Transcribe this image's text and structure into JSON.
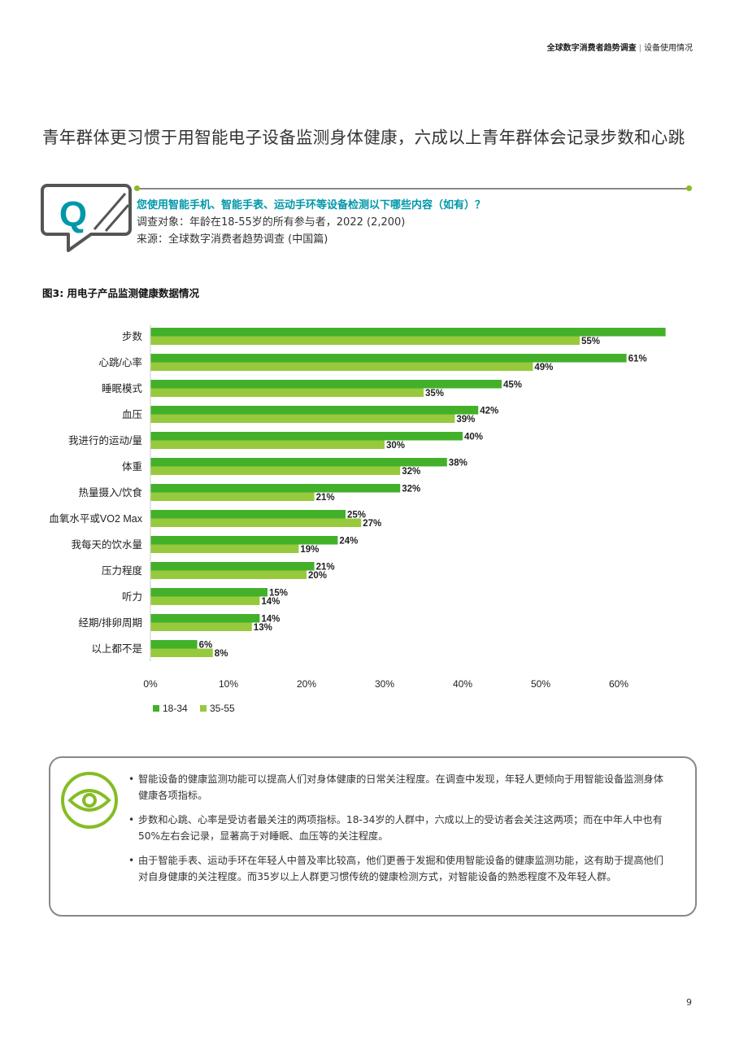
{
  "header": {
    "report": "全球数字消费者趋势调查",
    "section": "设备使用情况"
  },
  "page_title": "青年群体更习惯于用智能电子设备监测身体健康，六成以上青年群体会记录步数和心跳",
  "question": {
    "icon_letter": "Q",
    "text": "您使用智能手机、智能手表、运动手环等设备检测以下哪些内容（如有）？",
    "subjects": "调查对象：年龄在18-55岁的所有参与者，2022 (2,200)",
    "source": "来源：全球数字消费者趋势调查 (中国篇)"
  },
  "figure_title": "图3: 用电子产品监测健康数据情况",
  "chart_data": {
    "type": "bar",
    "orientation": "horizontal",
    "categories": [
      "步数",
      "心跳/心率",
      "睡眠模式",
      "血压",
      "我进行的运动/量",
      "体重",
      "热量摄入/饮食",
      "血氧水平或VO2 Max",
      "我每天的饮水量",
      "压力程度",
      "听力",
      "经期/排卵周期",
      "以上都不是"
    ],
    "series": [
      {
        "name": "18-34",
        "color": "#43b02a",
        "values": [
          66,
          61,
          45,
          42,
          40,
          38,
          32,
          25,
          24,
          21,
          15,
          14,
          6
        ]
      },
      {
        "name": "35-55",
        "color": "#97c93d",
        "values": [
          55,
          49,
          35,
          39,
          30,
          32,
          21,
          27,
          19,
          20,
          14,
          13,
          8
        ]
      }
    ],
    "x_ticks": [
      "0%",
      "10%",
      "20%",
      "30%",
      "40%",
      "50%",
      "60%"
    ],
    "xlim": [
      0,
      66
    ],
    "value_suffix": "%",
    "legend_position": "bottom-left",
    "grid": false
  },
  "callout": {
    "icon": "eye-icon",
    "bullets": [
      "智能设备的健康监测功能可以提高人们对身体健康的日常关注程度。在调查中发现，年轻人更倾向于用智能设备监测身体健康各项指标。",
      "步数和心跳、心率是受访者最关注的两项指标。18-34岁的人群中，六成以上的受访者会关注这两项；而在中年人中也有50%左右会记录，显著高于对睡眠、血压等的关注程度。",
      "由于智能手表、运动手环在年轻人中普及率比较高，他们更善于发掘和使用智能设备的健康监测功能，这有助于提高他们对自身健康的关注程度。而35岁以上人群更习惯传统的健康检测方式，对智能设备的熟悉程度不及年轻人群。"
    ]
  },
  "page_number": "9",
  "colors": {
    "accent_green": "#86bc25",
    "teal": "#0097a9",
    "dark_green": "#43b02a",
    "light_green": "#97c93d"
  }
}
